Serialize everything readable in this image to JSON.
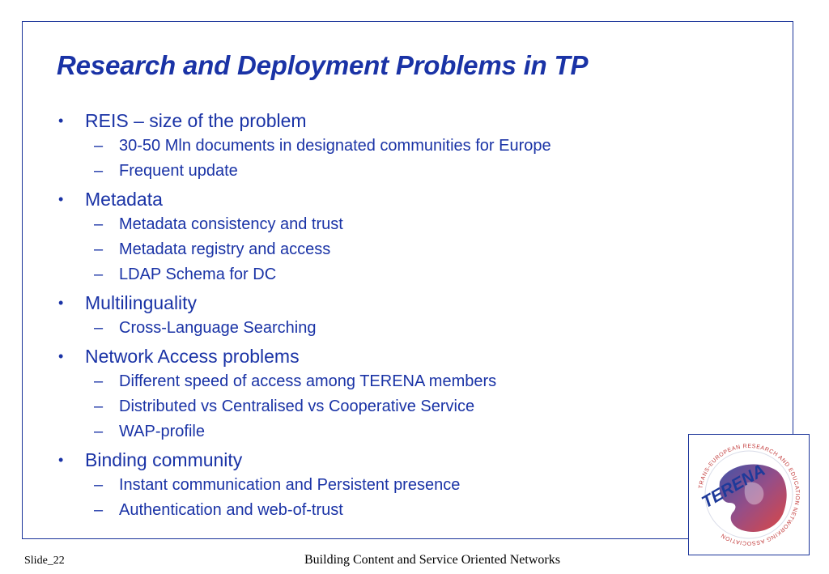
{
  "slide": {
    "title": "Research and Deployment Problems in TP",
    "accent_color": "#1a33a6"
  },
  "bullets": [
    {
      "label": "REIS – size of the problem",
      "sub": [
        "30-50 Mln documents in designated communities for Europe",
        "Frequent update"
      ]
    },
    {
      "label": "Metadata",
      "sub": [
        "Metadata consistency and trust",
        "Metadata registry and access",
        "LDAP Schema for DC"
      ]
    },
    {
      "label": "Multilinguality",
      "sub": [
        "Cross-Language Searching"
      ]
    },
    {
      "label": "Network Access problems",
      "sub": [
        "Different speed of access among TERENA members",
        "Distributed vs Centralised vs Cooperative Service",
        "WAP-profile"
      ]
    },
    {
      "label": "Binding community",
      "sub": [
        "Instant communication and Persistent presence",
        "Authentication and web-of-trust"
      ]
    }
  ],
  "logo": {
    "name": "TERENA",
    "ring_text": "TRANS-EUROPEAN RESEARCH AND EDUCATION NETWORKING ASSOCIATION",
    "icon": "terena-logo"
  },
  "footer": {
    "slide_number": "Slide_22",
    "center_text": "Building Content and Service Oriented Networks"
  }
}
